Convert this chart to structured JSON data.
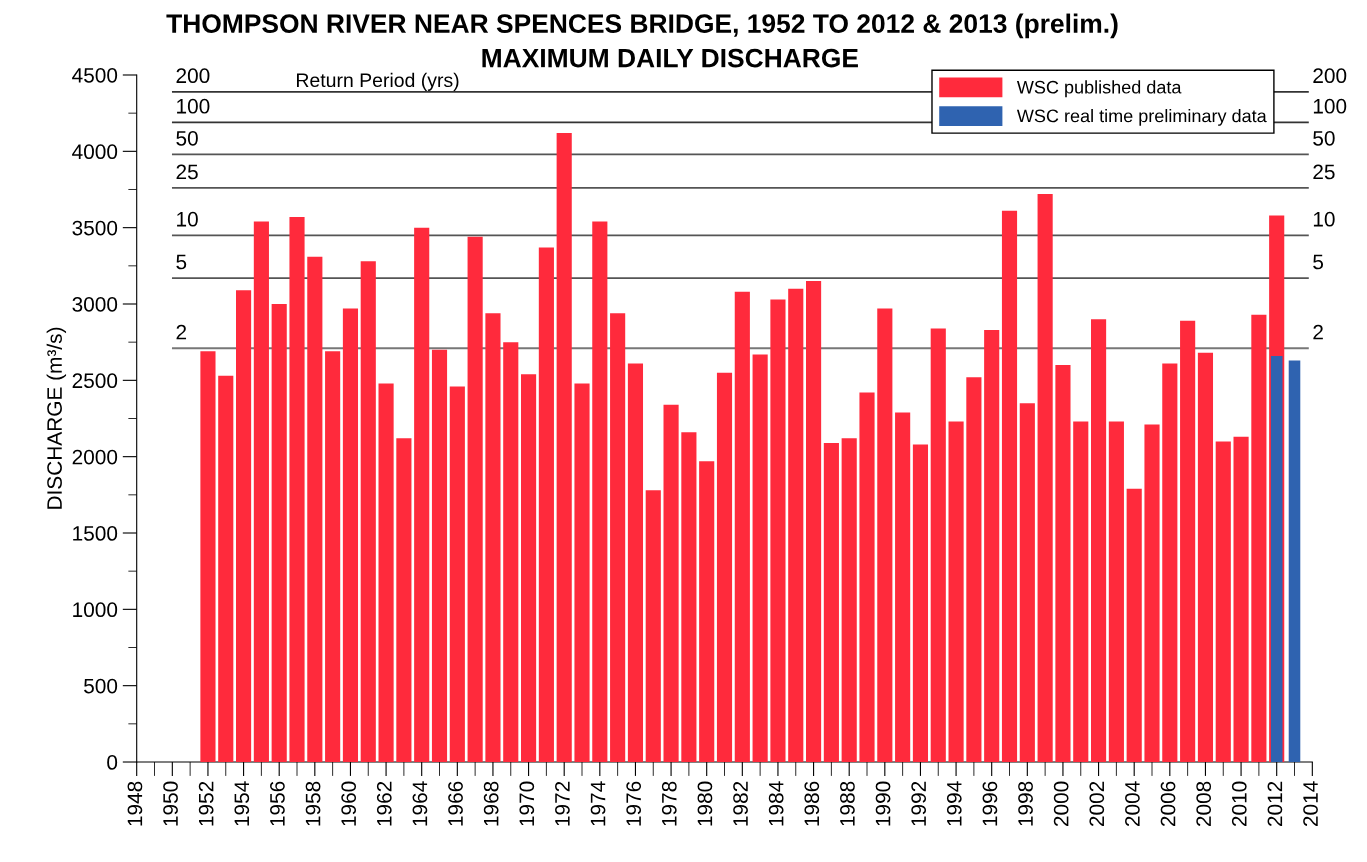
{
  "chart_data": {
    "type": "bar",
    "title": "THOMPSON RIVER NEAR SPENCES BRIDGE, 1952 TO 2012 & 2013 (prelim.)",
    "subtitle": "MAXIMUM DAILY DISCHARGE",
    "ylabel": "DISCHARGE (m³/s)",
    "annotations": [
      "Return Period (yrs)",
      {
        "text": "200",
        "y": 4390
      },
      {
        "text": "100",
        "y": 4190
      },
      {
        "text": "50",
        "y": 3980
      },
      {
        "text": "25",
        "y": 3760
      },
      {
        "text": "10",
        "y": 3450
      },
      {
        "text": "5",
        "y": 3170
      },
      {
        "text": "2",
        "y": 2710
      }
    ],
    "x": [
      1952,
      1953,
      1954,
      1955,
      1956,
      1957,
      1958,
      1959,
      1960,
      1961,
      1962,
      1963,
      1964,
      1965,
      1966,
      1967,
      1968,
      1969,
      1970,
      1971,
      1972,
      1973,
      1974,
      1975,
      1976,
      1977,
      1978,
      1979,
      1980,
      1981,
      1982,
      1983,
      1984,
      1985,
      1986,
      1987,
      1988,
      1989,
      1990,
      1991,
      1992,
      1993,
      1994,
      1995,
      1996,
      1997,
      1998,
      1999,
      2000,
      2001,
      2002,
      2003,
      2004,
      2005,
      2006,
      2007,
      2008,
      2009,
      2010,
      2011,
      2012
    ],
    "series": [
      {
        "name": "WSC published data",
        "color": "#ff2a3c",
        "values": [
          2690,
          2530,
          3090,
          3540,
          3000,
          3570,
          3310,
          2690,
          2970,
          3280,
          2480,
          2120,
          3500,
          2700,
          2460,
          3440,
          2940,
          2750,
          2540,
          3370,
          4120,
          2480,
          3540,
          2940,
          2610,
          1780,
          2340,
          2160,
          1970,
          2550,
          3080,
          2670,
          3030,
          3100,
          3150,
          2090,
          2120,
          2420,
          2970,
          2290,
          2080,
          2840,
          2230,
          2520,
          2830,
          3610,
          2350,
          3720,
          2600,
          2230,
          2900,
          2230,
          1790,
          2210,
          2610,
          2890,
          2680,
          2100,
          2130,
          2930,
          3580
        ]
      },
      {
        "name": "WSC real time preliminary data",
        "color": "#2f63b0",
        "x": [
          2012,
          2013
        ],
        "values": [
          2660,
          2630
        ]
      }
    ],
    "xlim": [
      1948,
      2014
    ],
    "xticks": [
      1948,
      {
        "value": 1949,
        "label": null
      },
      1950,
      {
        "value": 1951,
        "label": null
      },
      1952,
      {
        "value": 1953,
        "label": null
      },
      1954,
      {
        "value": 1955,
        "label": null
      },
      1956,
      {
        "value": 1957,
        "label": null
      },
      1958,
      {
        "value": 1959,
        "label": null
      },
      1960,
      {
        "value": 1961,
        "label": null
      },
      1962,
      {
        "value": 1963,
        "label": null
      },
      1964,
      {
        "value": 1965,
        "label": null
      },
      1966,
      {
        "value": 1967,
        "label": null
      },
      1968,
      {
        "value": 1969,
        "label": null
      },
      1970,
      {
        "value": 1971,
        "label": null
      },
      1972,
      {
        "value": 1973,
        "label": null
      },
      1974,
      {
        "value": 1975,
        "label": null
      },
      1976,
      {
        "value": 1977,
        "label": null
      },
      1978,
      {
        "value": 1979,
        "label": null
      },
      1980,
      {
        "value": 1981,
        "label": null
      },
      1982,
      {
        "value": 1983,
        "label": null
      },
      1984,
      {
        "value": 1985,
        "label": null
      },
      1986,
      {
        "value": 1987,
        "label": null
      },
      1988,
      {
        "value": 1989,
        "label": null
      },
      1990,
      {
        "value": 1991,
        "label": null
      },
      1992,
      {
        "value": 1993,
        "label": null
      },
      1994,
      {
        "value": 1995,
        "label": null
      },
      1996,
      {
        "value": 1997,
        "label": null
      },
      1998,
      {
        "value": 1999,
        "label": null
      },
      2000,
      {
        "value": 2001,
        "label": null
      },
      2002,
      {
        "value": 2003,
        "label": null
      },
      2004,
      {
        "value": 2005,
        "label": null
      },
      2006,
      {
        "value": 2007,
        "label": null
      },
      2008,
      {
        "value": 2009,
        "label": null
      },
      2010,
      {
        "value": 2011,
        "label": null
      },
      2012,
      {
        "value": 2013,
        "label": null
      },
      2014
    ],
    "ylim": [
      0,
      4500
    ],
    "yticks": [
      0,
      {
        "value": 250,
        "label": null
      },
      500,
      {
        "value": 750,
        "label": null
      },
      1000,
      {
        "value": 1250,
        "label": null
      },
      1500,
      {
        "value": 1750,
        "label": null
      },
      2000,
      {
        "value": 2250,
        "label": null
      },
      2500,
      {
        "value": 2750,
        "label": null
      },
      3000,
      {
        "value": 3250,
        "label": null
      },
      3500,
      {
        "value": 3750,
        "label": null
      },
      4000,
      {
        "value": 4250,
        "label": null
      },
      4500
    ],
    "ref_lines": [
      {
        "axis": "y",
        "value": 4390,
        "color": "#333333"
      },
      {
        "axis": "y",
        "value": 4190,
        "color": "#333333"
      },
      {
        "axis": "y",
        "value": 3980,
        "color": "#555555"
      },
      {
        "axis": "y",
        "value": 3760,
        "color": "#555555"
      },
      {
        "axis": "y",
        "value": 3450,
        "color": "#555555"
      },
      {
        "axis": "y",
        "value": 3170,
        "color": "#555555"
      },
      {
        "axis": "y",
        "value": 2710,
        "color": "#777777"
      }
    ],
    "grid": false,
    "legend": "top right"
  }
}
